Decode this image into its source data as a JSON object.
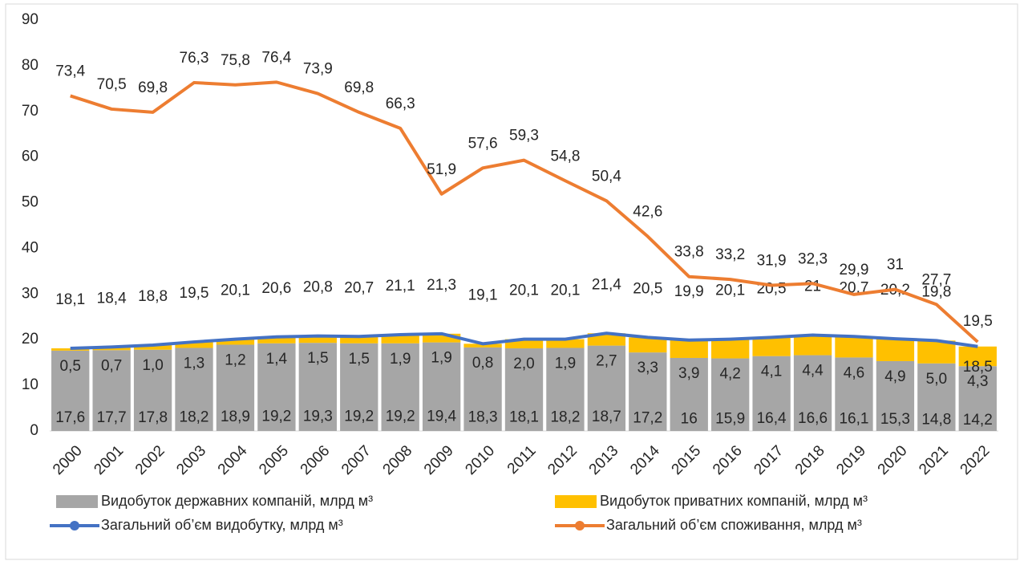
{
  "chart_data": {
    "type": "combo",
    "categories": [
      "2000",
      "2001",
      "2002",
      "2003",
      "2004",
      "2005",
      "2006",
      "2007",
      "2008",
      "2009",
      "2010",
      "2011",
      "2012",
      "2013",
      "2014",
      "2015",
      "2016",
      "2017",
      "2018",
      "2019",
      "2020",
      "2021",
      "2022"
    ],
    "series": [
      {
        "name": "Видобуток державних компаній, млрд м³",
        "type": "bar",
        "color": "#a6a6a6",
        "values": [
          17.6,
          17.7,
          17.8,
          18.2,
          18.9,
          19.2,
          19.3,
          19.2,
          19.2,
          19.4,
          18.3,
          18.1,
          18.2,
          18.7,
          17.2,
          16,
          15.9,
          16.4,
          16.6,
          16.1,
          15.3,
          14.8,
          14.2
        ],
        "value_labels": [
          "17,6",
          "17,7",
          "17,8",
          "18,2",
          "18,9",
          "19,2",
          "19,3",
          "19,2",
          "19,2",
          "19,4",
          "18,3",
          "18,1",
          "18,2",
          "18,7",
          "17,2",
          "16",
          "15,9",
          "16,4",
          "16,6",
          "16,1",
          "15,3",
          "14,8",
          "14,2"
        ]
      },
      {
        "name": "Видобуток приватних компаній, млрд м³",
        "type": "bar",
        "color": "#ffc000",
        "values": [
          0.5,
          0.7,
          1.0,
          1.3,
          1.2,
          1.4,
          1.5,
          1.5,
          1.9,
          1.9,
          0.8,
          2.0,
          1.9,
          2.7,
          3.3,
          3.9,
          4.2,
          4.1,
          4.4,
          4.6,
          4.9,
          5.0,
          4.3
        ],
        "value_labels": [
          "0,5",
          "0,7",
          "1,0",
          "1,3",
          "1,2",
          "1,4",
          "1,5",
          "1,5",
          "1,9",
          "1,9",
          "0,8",
          "2,0",
          "1,9",
          "2,7",
          "3,3",
          "3,9",
          "4,2",
          "4,1",
          "4,4",
          "4,6",
          "4,9",
          "5,0",
          "4,3"
        ]
      },
      {
        "name": "Загальний об’єм видобутку, млрд м³",
        "type": "line",
        "color": "#4472c4",
        "values": [
          18.1,
          18.4,
          18.8,
          19.5,
          20.1,
          20.6,
          20.8,
          20.7,
          21.1,
          21.3,
          19.1,
          20.1,
          20.1,
          21.4,
          20.5,
          19.9,
          20.1,
          20.5,
          21,
          20.7,
          20.2,
          19.8,
          18.5
        ],
        "value_labels": [
          "18,1",
          "18,4",
          "18,8",
          "19,5",
          "20,1",
          "20,6",
          "20,8",
          "20,7",
          "21,1",
          "21,3",
          "19,1",
          "20,1",
          "20,1",
          "21,4",
          "20,5",
          "19,9",
          "20,1",
          "20,5",
          "21",
          "20,7",
          "20,2",
          "19,8",
          "18,5"
        ]
      },
      {
        "name": "Загальний об’єм споживання, млрд м³",
        "type": "line",
        "color": "#ed7d31",
        "values": [
          73.4,
          70.5,
          69.8,
          76.3,
          75.8,
          76.4,
          73.9,
          69.8,
          66.3,
          51.9,
          57.6,
          59.3,
          54.8,
          50.4,
          42.6,
          33.8,
          33.2,
          31.9,
          32.3,
          29.9,
          31,
          27.7,
          19.5
        ],
        "value_labels": [
          "73,4",
          "70,5",
          "69,8",
          "76,3",
          "75,8",
          "76,4",
          "73,9",
          "69,8",
          "66,3",
          "51,9",
          "57,6",
          "59,3",
          "54,8",
          "50,4",
          "42,6",
          "33,8",
          "33,2",
          "31,9",
          "32,3",
          "29,9",
          "31",
          "27,7",
          "19,5"
        ]
      }
    ],
    "stacked": true,
    "ylim": [
      0,
      90
    ],
    "yticks": [
      0,
      10,
      20,
      30,
      40,
      50,
      60,
      70,
      80,
      90
    ],
    "grid": false
  }
}
